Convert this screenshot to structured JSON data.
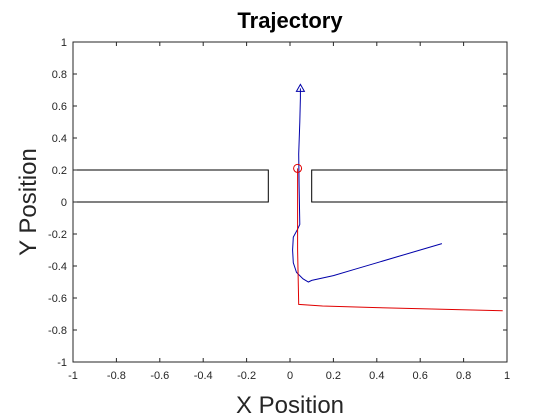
{
  "chart_data": {
    "type": "line",
    "title": "Trajectory",
    "xlabel": "X Position",
    "ylabel": "Y Position",
    "xlim": [
      -1,
      1
    ],
    "ylim": [
      -1,
      1
    ],
    "xticks": [
      -1,
      -0.8,
      -0.6,
      -0.4,
      -0.2,
      0,
      0.2,
      0.4,
      0.6,
      0.8,
      1
    ],
    "xtick_labels": [
      "-1",
      "-0.8",
      "-0.6",
      "-0.4",
      "-0.2",
      "0",
      "0.2",
      "0.4",
      "0.6",
      "0.8",
      "1"
    ],
    "yticks": [
      -1,
      -0.8,
      -0.6,
      -0.4,
      -0.2,
      0,
      0.2,
      0.4,
      0.6,
      0.8,
      1
    ],
    "ytick_labels": [
      "-1",
      "-0.8",
      "-0.6",
      "-0.4",
      "-0.2",
      "0",
      "0.2",
      "0.4",
      "0.6",
      "0.8",
      "1"
    ],
    "grid": false,
    "colors": {
      "series_a": "#0000aa",
      "series_b": "#e00000",
      "walls": "#000000"
    },
    "walls": [
      {
        "x": [
          -1,
          -0.1,
          -0.1,
          -1
        ],
        "y": [
          0.2,
          0.2,
          0,
          0
        ]
      },
      {
        "x": [
          1,
          0.1,
          0.1,
          1
        ],
        "y": [
          0.2,
          0.2,
          0,
          0
        ]
      }
    ],
    "series": [
      {
        "color": "#0000aa",
        "x": [
          0.7,
          0.6,
          0.5,
          0.4,
          0.3,
          0.2,
          0.1,
          0.085,
          0.06,
          0.03,
          0.015,
          0.012,
          0.015,
          0.035,
          0.045,
          0.042,
          0.04,
          0.045,
          0.048,
          0.048
        ],
        "y": [
          -0.26,
          -0.3,
          -0.34,
          -0.38,
          -0.42,
          -0.46,
          -0.49,
          -0.5,
          -0.48,
          -0.44,
          -0.38,
          -0.3,
          -0.22,
          -0.17,
          -0.14,
          0.1,
          0.3,
          0.5,
          0.65,
          0.71
        ]
      },
      {
        "color": "#e00000",
        "x": [
          0.98,
          0.7,
          0.4,
          0.15,
          0.04,
          0.035,
          0.035,
          0.035
        ],
        "y": [
          -0.68,
          -0.67,
          -0.66,
          -0.65,
          -0.64,
          -0.3,
          0,
          0.21
        ]
      }
    ],
    "markers": [
      {
        "shape": "triangle",
        "color": "#0000aa",
        "x": 0.048,
        "y": 0.71
      },
      {
        "shape": "circle",
        "color": "#e00000",
        "x": 0.035,
        "y": 0.21
      }
    ]
  }
}
